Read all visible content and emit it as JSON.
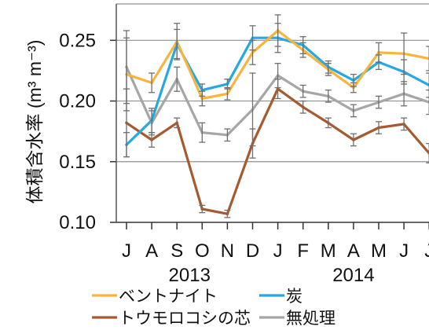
{
  "chart_data": {
    "type": "line",
    "ylabel": "体積含水率 (m³ m⁻³)",
    "categories": [
      "J",
      "A",
      "S",
      "O",
      "N",
      "D",
      "J",
      "F",
      "M",
      "A",
      "M",
      "J",
      "J"
    ],
    "years": [
      "2013",
      "2014"
    ],
    "yticks": [
      "0.10",
      "0.15",
      "0.20",
      "0.25"
    ],
    "ylim": [
      0.1,
      0.28
    ],
    "grid": true,
    "legend": "bottom",
    "series": [
      {
        "name": "ベントナイト",
        "color": "#F9B43D",
        "values": [
          0.222,
          0.215,
          0.249,
          0.202,
          0.206,
          0.24,
          0.258,
          0.242,
          0.226,
          0.211,
          0.24,
          0.239,
          0.235
        ],
        "errors": [
          0.03,
          0.008,
          0.015,
          0.006,
          0.005,
          0.01,
          0.013,
          0.006,
          0.005,
          0.004,
          0.008,
          0.017,
          0.01
        ]
      },
      {
        "name": "炭",
        "color": "#25A9E0",
        "values": [
          0.164,
          0.184,
          0.247,
          0.209,
          0.214,
          0.252,
          0.252,
          0.246,
          0.228,
          0.217,
          0.232,
          0.224,
          0.213
        ],
        "errors": [
          0.01,
          0.01,
          0.012,
          0.005,
          0.004,
          0.01,
          0.012,
          0.007,
          0.005,
          0.005,
          0.006,
          0.01,
          0.01
        ]
      },
      {
        "name": "トウモロコシの芯",
        "color": "#A55A2F",
        "values": [
          0.182,
          0.168,
          0.182,
          0.111,
          0.107,
          0.165,
          0.21,
          0.195,
          0.182,
          0.168,
          0.178,
          0.181,
          0.157
        ],
        "errors": [
          0.028,
          0.006,
          0.004,
          0.003,
          0.003,
          0.012,
          0.008,
          0.005,
          0.004,
          0.005,
          0.005,
          0.005,
          0.008
        ]
      },
      {
        "name": "無処理",
        "color": "#A6A6A6",
        "values": [
          0.228,
          0.182,
          0.218,
          0.174,
          0.172,
          0.193,
          0.221,
          0.208,
          0.204,
          0.192,
          0.199,
          0.206,
          0.199
        ],
        "errors": [
          0.03,
          0.01,
          0.01,
          0.008,
          0.005,
          0.03,
          0.01,
          0.005,
          0.005,
          0.005,
          0.005,
          0.01,
          0.01
        ]
      }
    ]
  }
}
